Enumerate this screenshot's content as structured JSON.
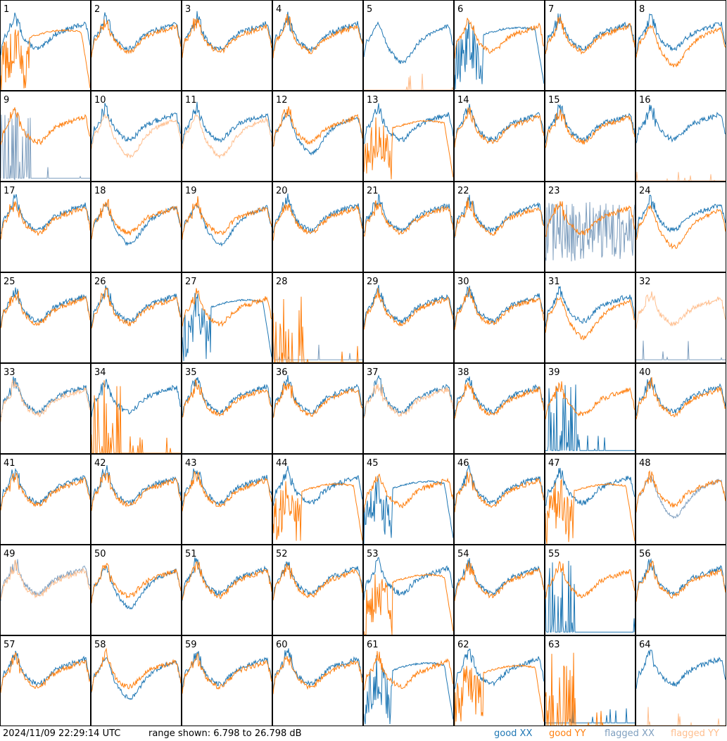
{
  "chart_data": {
    "type": "line",
    "grid": "8x8 small multiples",
    "panel_labels": [
      "1",
      "2",
      "3",
      "4",
      "5",
      "6",
      "7",
      "8",
      "9",
      "10",
      "11",
      "12",
      "13",
      "14",
      "15",
      "16",
      "17",
      "18",
      "19",
      "20",
      "21",
      "22",
      "23",
      "24",
      "25",
      "26",
      "27",
      "28",
      "29",
      "30",
      "31",
      "32",
      "33",
      "34",
      "35",
      "36",
      "37",
      "38",
      "39",
      "40",
      "41",
      "42",
      "43",
      "44",
      "45",
      "46",
      "47",
      "48",
      "49",
      "50",
      "51",
      "52",
      "53",
      "54",
      "55",
      "56",
      "57",
      "58",
      "59",
      "60",
      "61",
      "62",
      "63",
      "64"
    ],
    "ylim": [
      6.798,
      26.798
    ],
    "yunit": "dB",
    "legend": [
      {
        "label": "good XX",
        "color": "#1f77b4"
      },
      {
        "label": "good YY",
        "color": "#ff7f0e"
      },
      {
        "label": "flagged XX",
        "color": "#7f9fbf"
      },
      {
        "label": "flagged YY",
        "color": "#ffbf8f"
      }
    ],
    "panels": {
      "1": {
        "xx": "good",
        "yy": "good",
        "xx_shape": "normal",
        "yy_shape": "dropout"
      },
      "2": {
        "xx": "good",
        "yy": "good"
      },
      "3": {
        "xx": "good",
        "yy": "good"
      },
      "4": {
        "xx": "good",
        "yy": "good"
      },
      "5": {
        "xx": "good",
        "yy": "flagged",
        "xx_shape": "sag",
        "yy_shape": "flat_low"
      },
      "6": {
        "xx": "good",
        "yy": "good",
        "xx_shape": "dropout",
        "yy_shape": "normal"
      },
      "7": {
        "xx": "good",
        "yy": "good"
      },
      "8": {
        "xx": "good",
        "yy": "good",
        "yy_shape": "sag"
      },
      "9": {
        "xx": "flagged",
        "yy": "good",
        "xx_shape": "spiky_low",
        "yy_shape": "normal"
      },
      "10": {
        "xx": "good",
        "yy": "flagged",
        "yy_shape": "sag"
      },
      "11": {
        "xx": "good",
        "yy": "flagged",
        "yy_shape": "sag"
      },
      "12": {
        "xx": "good",
        "yy": "good",
        "xx_shape": "sag"
      },
      "13": {
        "xx": "good",
        "yy": "good",
        "yy_shape": "dropout"
      },
      "14": {
        "xx": "good",
        "yy": "good"
      },
      "15": {
        "xx": "good",
        "yy": "good"
      },
      "16": {
        "xx": "good",
        "yy": "flagged",
        "yy_shape": "flat_low"
      },
      "17": {
        "xx": "good",
        "yy": "good"
      },
      "18": {
        "xx": "good",
        "yy": "good",
        "xx_shape": "sag"
      },
      "19": {
        "xx": "good",
        "yy": "good",
        "xx_shape": "sag"
      },
      "20": {
        "xx": "good",
        "yy": "good"
      },
      "21": {
        "xx": "good",
        "yy": "good"
      },
      "22": {
        "xx": "good",
        "yy": "good"
      },
      "23": {
        "xx": "flagged",
        "yy": "good",
        "xx_shape": "noisy_mid"
      },
      "24": {
        "xx": "good",
        "yy": "good",
        "yy_shape": "sag"
      },
      "25": {
        "xx": "good",
        "yy": "good"
      },
      "26": {
        "xx": "good",
        "yy": "good"
      },
      "27": {
        "xx": "good",
        "yy": "good",
        "xx_shape": "dropout"
      },
      "28": {
        "xx": "flagged",
        "yy": "good",
        "xx_shape": "flat_low",
        "yy_shape": "spiky_low"
      },
      "29": {
        "xx": "good",
        "yy": "good"
      },
      "30": {
        "xx": "good",
        "yy": "good"
      },
      "31": {
        "xx": "good",
        "yy": "good",
        "yy_shape": "sag"
      },
      "32": {
        "xx": "flagged",
        "yy": "flagged",
        "xx_shape": "flat_low",
        "yy_shape": "normal"
      },
      "33": {
        "xx": "good",
        "yy": "flagged"
      },
      "34": {
        "xx": "good",
        "yy": "good",
        "yy_shape": "spiky_low"
      },
      "35": {
        "xx": "good",
        "yy": "good"
      },
      "36": {
        "xx": "good",
        "yy": "good"
      },
      "37": {
        "xx": "good",
        "yy": "flagged"
      },
      "38": {
        "xx": "good",
        "yy": "good"
      },
      "39": {
        "xx": "good",
        "yy": "good",
        "xx_shape": "spiky_low",
        "yy_shape": "normal"
      },
      "40": {
        "xx": "good",
        "yy": "good"
      },
      "41": {
        "xx": "good",
        "yy": "good"
      },
      "42": {
        "xx": "good",
        "yy": "good"
      },
      "43": {
        "xx": "good",
        "yy": "good"
      },
      "44": {
        "xx": "good",
        "yy": "good",
        "yy_shape": "dropout"
      },
      "45": {
        "xx": "good",
        "yy": "good",
        "xx_shape": "dropout"
      },
      "46": {
        "xx": "good",
        "yy": "good"
      },
      "47": {
        "xx": "good",
        "yy": "good",
        "yy_shape": "dropout"
      },
      "48": {
        "xx": "flagged",
        "yy": "good",
        "xx_shape": "sag"
      },
      "49": {
        "xx": "flagged",
        "yy": "flagged"
      },
      "50": {
        "xx": "good",
        "yy": "good",
        "xx_shape": "sag"
      },
      "51": {
        "xx": "good",
        "yy": "good"
      },
      "52": {
        "xx": "good",
        "yy": "good"
      },
      "53": {
        "xx": "good",
        "yy": "good",
        "yy_shape": "dropout"
      },
      "54": {
        "xx": "good",
        "yy": "good"
      },
      "55": {
        "xx": "good",
        "yy": "good",
        "xx_shape": "spiky_low",
        "yy_shape": "normal"
      },
      "56": {
        "xx": "good",
        "yy": "good"
      },
      "57": {
        "xx": "good",
        "yy": "good"
      },
      "58": {
        "xx": "good",
        "yy": "good",
        "xx_shape": "sag"
      },
      "59": {
        "xx": "good",
        "yy": "good"
      },
      "60": {
        "xx": "good",
        "yy": "good"
      },
      "61": {
        "xx": "good",
        "yy": "good",
        "xx_shape": "dropout"
      },
      "62": {
        "xx": "good",
        "yy": "good",
        "yy_shape": "dropout"
      },
      "63": {
        "xx": "good",
        "yy": "good",
        "xx_shape": "flat_low",
        "yy_shape": "spiky_low"
      },
      "64": {
        "xx": "good",
        "yy": "flagged",
        "xx_shape": "normal",
        "yy_shape": "flat_low"
      }
    }
  },
  "footer": {
    "timestamp": "2024/11/09 22:29:14 UTC",
    "range_text": "range shown: 6.798 to 26.798 dB",
    "legend_good_xx": "good XX",
    "legend_good_yy": "good YY",
    "legend_flagged_xx": "flagged XX",
    "legend_flagged_yy": "flagged YY"
  },
  "colors": {
    "good_xx": "#1f77b4",
    "good_yy": "#ff7f0e",
    "flagged_xx": "#7f9fbf",
    "flagged_yy": "#ffbf8f",
    "border": "#000000"
  }
}
